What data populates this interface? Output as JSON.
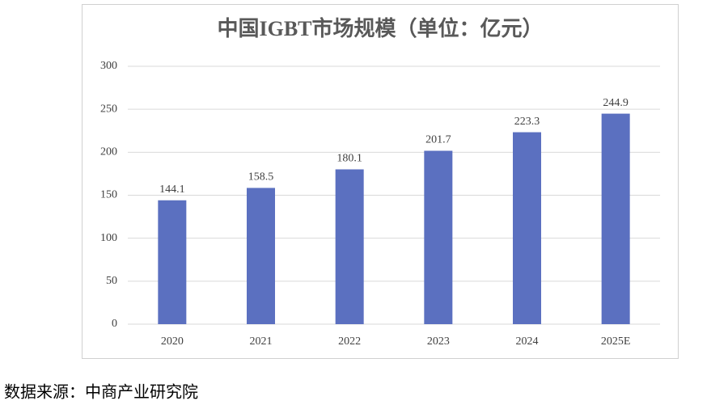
{
  "chart_data": {
    "type": "bar",
    "title": "中国IGBT市场规模（单位：亿元）",
    "categories": [
      "2020",
      "2021",
      "2022",
      "2023",
      "2024",
      "2025E"
    ],
    "values": [
      144.1,
      158.5,
      180.1,
      201.7,
      223.3,
      244.9
    ],
    "color": "#5b70c0",
    "ylim": [
      0,
      300
    ],
    "yticks": [
      0,
      50,
      100,
      150,
      200,
      250,
      300
    ],
    "grid": true
  },
  "source": "数据来源：中商产业研究院"
}
